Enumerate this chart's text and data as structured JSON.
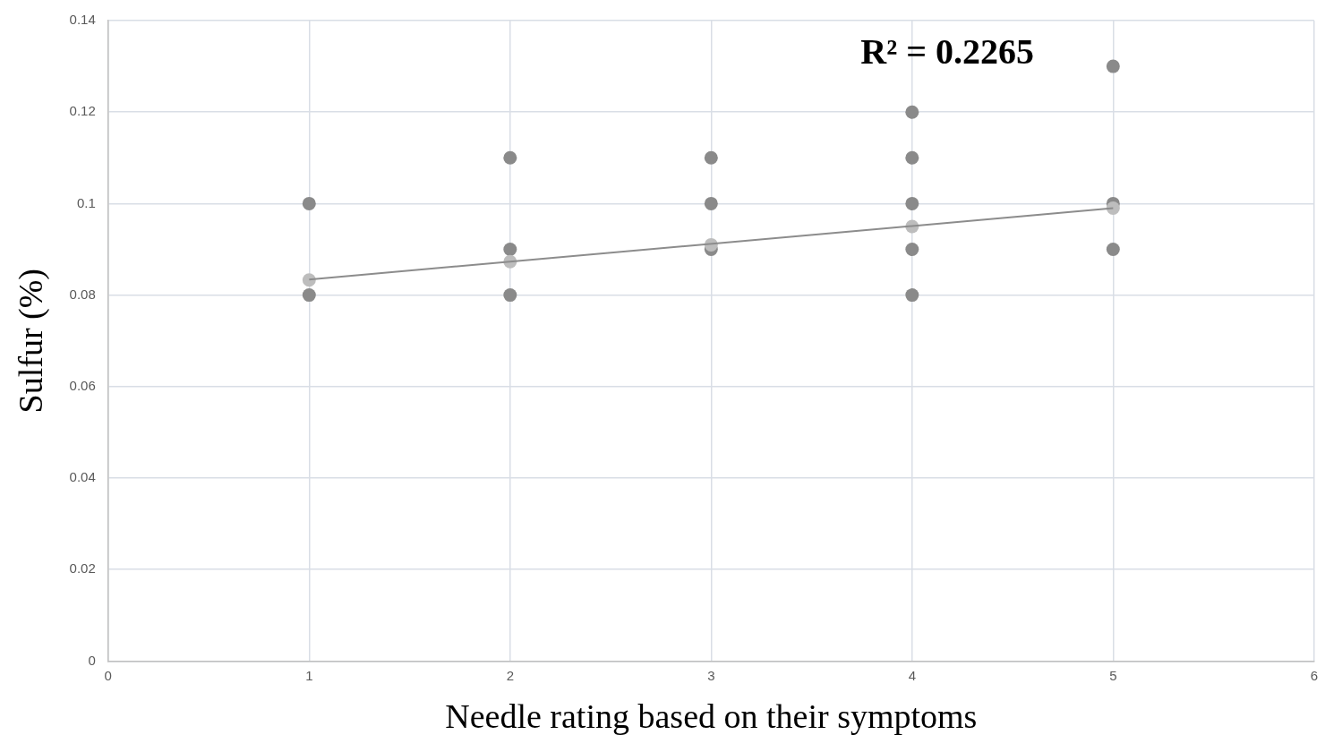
{
  "chart_data": {
    "type": "scatter",
    "xlabel": "Needle rating based on their symptoms",
    "ylabel": "Sulfur (%)",
    "annotations": [
      "R² = 0.2265"
    ],
    "series": [
      {
        "color": "#8a8a8a",
        "x": [
          1,
          1,
          2,
          2,
          2,
          3,
          3,
          3,
          4,
          4,
          4,
          4,
          4,
          5,
          5,
          5
        ],
        "values": [
          0.1,
          0.08,
          0.11,
          0.09,
          0.08,
          0.11,
          0.1,
          0.09,
          0.12,
          0.11,
          0.1,
          0.09,
          0.08,
          0.13,
          0.1,
          0.09
        ]
      },
      {
        "color": "#bdbdbd",
        "x": [
          1,
          2,
          3,
          4,
          5
        ],
        "values": [
          0.0833,
          0.0873,
          0.091,
          0.095,
          0.099
        ]
      },
      {
        "type": "line",
        "color": "#8c8c8c",
        "marker": "none",
        "x": [
          1,
          5
        ],
        "values": [
          0.0834,
          0.099
        ]
      }
    ],
    "xlim": [
      0,
      6
    ],
    "xticks": [
      0,
      1,
      2,
      3,
      4,
      5,
      6
    ],
    "ylim": [
      0,
      0.14
    ],
    "yticks": [
      0,
      0.02,
      0.04,
      0.06,
      0.08,
      0.1,
      0.12,
      0.14
    ],
    "grid": true,
    "marker": "circle",
    "legend": false
  }
}
